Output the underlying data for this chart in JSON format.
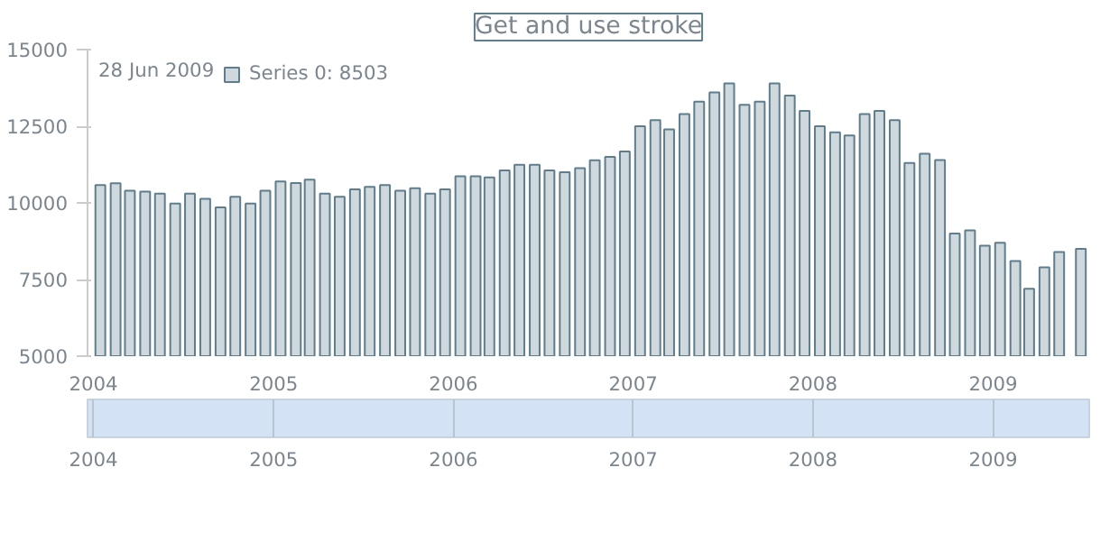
{
  "chart_data": {
    "type": "bar",
    "title": "Get and use stroke",
    "annotations": [
      "28 Jun 2009"
    ],
    "x": [
      "2004-01-15",
      "2004-02-15",
      "2004-03-15",
      "2004-04-15",
      "2004-05-15",
      "2004-06-15",
      "2004-07-15",
      "2004-08-15",
      "2004-09-15",
      "2004-10-15",
      "2004-11-15",
      "2004-12-15",
      "2005-01-15",
      "2005-02-15",
      "2005-03-15",
      "2005-04-15",
      "2005-05-15",
      "2005-06-15",
      "2005-07-15",
      "2005-08-15",
      "2005-09-15",
      "2005-10-15",
      "2005-11-15",
      "2005-12-15",
      "2006-01-15",
      "2006-02-15",
      "2006-03-15",
      "2006-04-15",
      "2006-05-15",
      "2006-06-15",
      "2006-07-15",
      "2006-08-15",
      "2006-09-15",
      "2006-10-15",
      "2006-11-15",
      "2006-12-15",
      "2007-01-15",
      "2007-02-15",
      "2007-03-15",
      "2007-04-15",
      "2007-05-15",
      "2007-06-15",
      "2007-07-15",
      "2007-08-15",
      "2007-09-15",
      "2007-10-15",
      "2007-11-15",
      "2007-12-15",
      "2008-01-15",
      "2008-02-15",
      "2008-03-15",
      "2008-04-15",
      "2008-05-15",
      "2008-06-15",
      "2008-07-15",
      "2008-08-15",
      "2008-09-15",
      "2008-10-15",
      "2008-11-15",
      "2008-12-15",
      "2009-01-15",
      "2009-02-15",
      "2009-03-15",
      "2009-04-15",
      "2009-05-15",
      "2009-06-28"
    ],
    "series": [
      {
        "name": "Series 0: 8503",
        "color": "#5f7d8c",
        "values": [
          10580,
          10640,
          10400,
          10370,
          10300,
          9980,
          10300,
          10130,
          9850,
          10200,
          9980,
          10400,
          10700,
          10650,
          10760,
          10300,
          10200,
          10440,
          10520,
          10580,
          10400,
          10480,
          10300,
          10440,
          10870,
          10870,
          10830,
          11060,
          11240,
          11240,
          11060,
          11000,
          11130,
          11390,
          11500,
          11680,
          12500,
          12700,
          12400,
          12900,
          13300,
          13600,
          13900,
          13200,
          13300,
          13900,
          13500,
          13000,
          12500,
          12300,
          12200,
          12900,
          13000,
          12700,
          11300,
          11600,
          11400,
          9000,
          9100,
          8600,
          8700,
          8100,
          7200,
          7900,
          8400,
          8503
        ]
      }
    ],
    "xlim": [
      "2003-12-20",
      "2009-07-15"
    ],
    "xticks": [
      {
        "value": "2004-01-01",
        "label": "2004"
      },
      {
        "value": "2005-01-01",
        "label": "2005"
      },
      {
        "value": "2006-01-01",
        "label": "2006"
      },
      {
        "value": "2007-01-01",
        "label": "2007"
      },
      {
        "value": "2008-01-01",
        "label": "2008"
      },
      {
        "value": "2009-01-01",
        "label": "2009"
      }
    ],
    "x2lim": [
      "2003-12-20",
      "2009-07-15"
    ],
    "x2ticks": [
      {
        "value": "2004-01-01",
        "label": "2004"
      },
      {
        "value": "2005-01-01",
        "label": "2005"
      },
      {
        "value": "2006-01-01",
        "label": "2006"
      },
      {
        "value": "2007-01-01",
        "label": "2007"
      },
      {
        "value": "2008-01-01",
        "label": "2008"
      },
      {
        "value": "2009-01-01",
        "label": "2009"
      }
    ],
    "ylim": [
      5000,
      15000
    ],
    "yticks": [
      5000,
      7500,
      10000,
      12500,
      15000
    ],
    "grid": false,
    "legend": "top left"
  }
}
